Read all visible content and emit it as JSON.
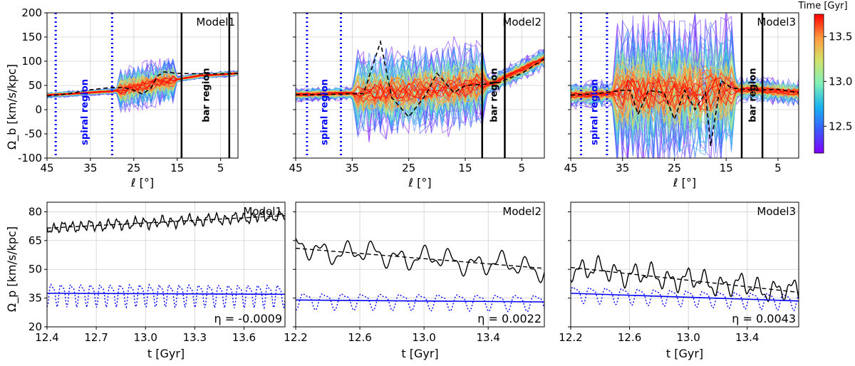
{
  "colorbar": {
    "label": "Time [Gyr]",
    "ticks": [
      12.5,
      13.0,
      13.5
    ],
    "tick_labels": [
      "12.5",
      "13.0",
      "13.5"
    ],
    "range": [
      12.2,
      13.75
    ],
    "colormap": "rainbow"
  },
  "colors": {
    "black": "#000000",
    "blue": "#0000ff",
    "grid": "#d0d0d0"
  },
  "top_row": {
    "ylabel": "Ω_b [km/s/kpc]",
    "xlabel": "ℓ [°]",
    "ylim": [
      -100,
      200
    ],
    "yticks": [
      -100,
      -50,
      0,
      50,
      100,
      150,
      200
    ],
    "xlim": [
      45,
      1
    ],
    "xticks": [
      45,
      35,
      25,
      15,
      5
    ],
    "spiral_label": "spiral region",
    "bar_label": "bar region"
  },
  "bottom_row": {
    "ylabel": "Ω_p [km/s/kpc]",
    "xlabel": "t [Gyr]",
    "ylim": [
      20,
      85
    ],
    "yticks": [
      20,
      35,
      50,
      65,
      80
    ]
  },
  "chart_data": [
    {
      "type": "line",
      "title": "Model1",
      "panel": "top",
      "xlabel": "ℓ [°]",
      "ylabel": "Ω_b [km/s/kpc]",
      "xlim": [
        45,
        1
      ],
      "ylim": [
        -100,
        200
      ],
      "spiral_lines_l": [
        43,
        30
      ],
      "bar_lines_l": [
        14,
        3
      ],
      "median_x": [
        45,
        40,
        35,
        30,
        27,
        25,
        23,
        21,
        19.5,
        18,
        15,
        10,
        5,
        1
      ],
      "median_y": [
        28,
        33,
        41,
        46,
        45,
        40,
        32,
        45,
        70,
        78,
        75,
        74,
        74,
        75
      ],
      "ensemble_note": "many time-colored curves"
    },
    {
      "type": "line",
      "title": "Model2",
      "panel": "top",
      "xlabel": "ℓ [°]",
      "xlim": [
        45,
        1
      ],
      "ylim": [
        -100,
        200
      ],
      "spiral_lines_l": [
        43,
        37
      ],
      "bar_lines_l": [
        12,
        8
      ],
      "median_x": [
        45,
        40,
        35,
        33,
        30,
        28,
        25,
        22,
        20,
        17,
        15,
        12,
        9,
        5,
        1
      ],
      "median_y": [
        31,
        31,
        33,
        33,
        140,
        25,
        -15,
        30,
        75,
        35,
        50,
        52,
        56,
        75,
        105
      ]
    },
    {
      "type": "line",
      "title": "Model3",
      "panel": "top",
      "xlabel": "ℓ [°]",
      "xlim": [
        45,
        1
      ],
      "ylim": [
        -100,
        200
      ],
      "spiral_lines_l": [
        43,
        38
      ],
      "bar_lines_l": [
        12,
        8
      ],
      "median_x": [
        45,
        40,
        35,
        33.5,
        32,
        30,
        27,
        25,
        23,
        21,
        19,
        18,
        16,
        14,
        10,
        5,
        1
      ],
      "median_y": [
        30,
        33,
        40,
        40,
        -10,
        40,
        35,
        -20,
        40,
        0,
        35,
        -75,
        60,
        45,
        40,
        42,
        35
      ]
    },
    {
      "type": "line",
      "title": "Model1",
      "panel": "bottom",
      "xlabel": "t [Gyr]",
      "xlim": [
        12.4,
        13.85
      ],
      "ylim": [
        20,
        85
      ],
      "xticks": [
        12.4,
        12.7,
        13.0,
        13.3,
        13.6
      ],
      "xtick_labels": [
        "12.4",
        "12.7",
        "13.0",
        "13.3",
        "13.6"
      ],
      "annotation": "η = -0.0009",
      "black_fit": [
        [
          12.4,
          71.5
        ],
        [
          13.85,
          78.0
        ]
      ],
      "blue_fit": [
        [
          12.4,
          37.5
        ],
        [
          13.85,
          37.0
        ]
      ],
      "black_mean": 75,
      "black_amp": 3,
      "black_period": 0.055,
      "blue_mean": 37,
      "blue_amp": 7,
      "blue_period": 0.06
    },
    {
      "type": "line",
      "title": "Model2",
      "panel": "bottom",
      "xlabel": "t [Gyr]",
      "xlim": [
        12.2,
        13.75
      ],
      "ylim": [
        20,
        85
      ],
      "xticks": [
        12.2,
        12.6,
        13.0,
        13.4
      ],
      "xtick_labels": [
        "12.2",
        "12.6",
        "13.0",
        "13.4"
      ],
      "annotation": "η = 0.0022",
      "black_fit": [
        [
          12.2,
          61.0
        ],
        [
          13.75,
          50.5
        ]
      ],
      "blue_fit": [
        [
          12.2,
          34.0
        ],
        [
          13.75,
          33.0
        ]
      ],
      "black_mean": 56,
      "black_amp": 6,
      "black_period": 0.16,
      "blue_mean": 33,
      "blue_amp": 5,
      "blue_period": 0.12
    },
    {
      "type": "line",
      "title": "Model3",
      "panel": "bottom",
      "xlabel": "t [Gyr]",
      "xlim": [
        12.2,
        13.75
      ],
      "ylim": [
        20,
        85
      ],
      "xticks": [
        12.2,
        12.6,
        13.0,
        13.4
      ],
      "xtick_labels": [
        "12.2",
        "12.6",
        "13.0",
        "13.4"
      ],
      "annotation": "η = 0.0043",
      "black_fit": [
        [
          12.2,
          51.0
        ],
        [
          13.75,
          38.0
        ]
      ],
      "blue_fit": [
        [
          12.2,
          37.5
        ],
        [
          13.75,
          33.5
        ]
      ],
      "black_mean": 45,
      "black_amp": 6,
      "black_period": 0.12,
      "blue_mean": 35,
      "blue_amp": 5,
      "blue_period": 0.11
    }
  ]
}
